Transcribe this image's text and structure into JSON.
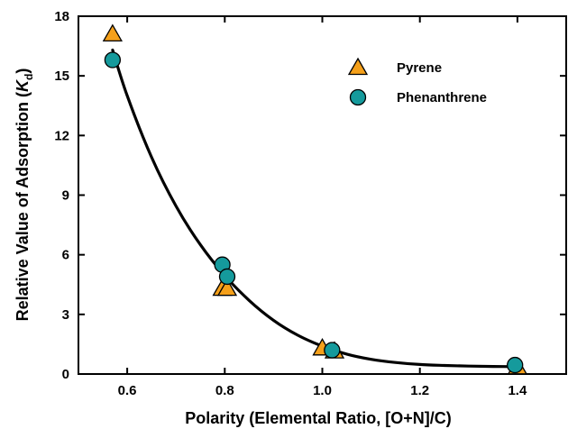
{
  "chart_data": {
    "type": "scatter",
    "xlabel": "Polarity (Elemental Ratio, [O+N]/C)",
    "ylabel_main": "Relative Value of Adsorption",
    "ylabel_symbol": "K",
    "ylabel_sub": "d",
    "xlim": [
      0.5,
      1.5
    ],
    "ylim": [
      0,
      18
    ],
    "xticks": [
      0.6,
      0.8,
      1.0,
      1.2,
      1.4
    ],
    "xtick_labels": [
      "0.6",
      "0.8",
      "1.0",
      "1.2",
      "1.4"
    ],
    "yticks": [
      0,
      3,
      6,
      9,
      12,
      15,
      18
    ],
    "ytick_labels": [
      "0",
      "3",
      "6",
      "9",
      "12",
      "15",
      "18"
    ],
    "grid": false,
    "legend_position": "top-right",
    "series": [
      {
        "name": "Pyrene",
        "marker": "triangle",
        "color": "#f5a01a",
        "points": [
          [
            0.57,
            17.1
          ],
          [
            0.795,
            4.3
          ],
          [
            0.805,
            4.3
          ],
          [
            1.0,
            1.3
          ],
          [
            1.025,
            1.15
          ],
          [
            1.4,
            0.35
          ]
        ]
      },
      {
        "name": "Phenanthrene",
        "marker": "circle",
        "color": "#159a9c",
        "points": [
          [
            0.57,
            15.8
          ],
          [
            0.795,
            5.5
          ],
          [
            0.805,
            4.9
          ],
          [
            1.02,
            1.2
          ],
          [
            1.395,
            0.45
          ]
        ]
      }
    ],
    "fit_curve": {
      "color": "#000000",
      "points": [
        [
          0.57,
          16.3
        ],
        [
          0.6,
          14.0
        ],
        [
          0.65,
          10.9
        ],
        [
          0.7,
          8.45
        ],
        [
          0.75,
          6.5
        ],
        [
          0.8,
          4.95
        ],
        [
          0.85,
          3.7
        ],
        [
          0.9,
          2.7
        ],
        [
          0.95,
          1.95
        ],
        [
          1.0,
          1.4
        ],
        [
          1.05,
          1.0
        ],
        [
          1.1,
          0.74
        ],
        [
          1.15,
          0.58
        ],
        [
          1.2,
          0.48
        ],
        [
          1.25,
          0.43
        ],
        [
          1.3,
          0.4
        ],
        [
          1.35,
          0.38
        ],
        [
          1.4,
          0.37
        ]
      ]
    }
  }
}
